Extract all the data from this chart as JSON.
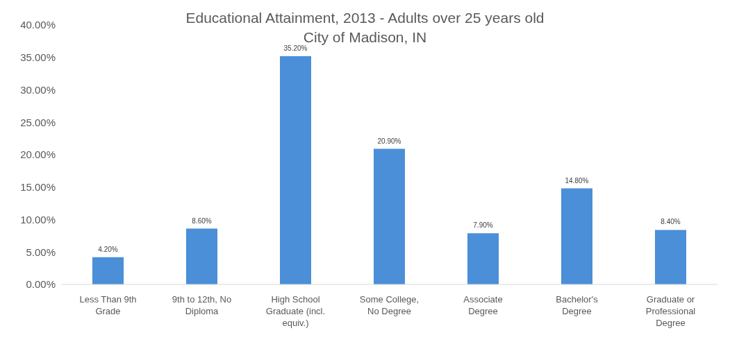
{
  "chart_data": {
    "type": "bar",
    "title": "Educational Attainment, 2013 - Adults over 25 years old",
    "subtitle": "City of Madison, IN",
    "categories": [
      "Less Than 9th Grade",
      "9th to 12th, No Diploma",
      "High School Graduate (incl. equiv.)",
      "Some College, No Degree",
      "Associate Degree",
      "Bachelor's Degree",
      "Graduate or Professional Degree"
    ],
    "values": [
      4.2,
      8.6,
      35.2,
      20.9,
      7.9,
      14.8,
      8.4
    ],
    "value_labels": [
      "4.20%",
      "8.60%",
      "35.20%",
      "20.90%",
      "7.90%",
      "14.80%",
      "8.40%"
    ],
    "color": "#4a8fd8",
    "ylim": [
      0,
      40
    ],
    "yticks": [
      {
        "value": 0,
        "label": "0.00%"
      },
      {
        "value": 5,
        "label": "5.00%"
      },
      {
        "value": 10,
        "label": "10.00%"
      },
      {
        "value": 15,
        "label": "15.00%"
      },
      {
        "value": 20,
        "label": "20.00%"
      },
      {
        "value": 25,
        "label": "25.00%"
      },
      {
        "value": 30,
        "label": "30.00%"
      },
      {
        "value": 35,
        "label": "35.00%"
      },
      {
        "value": 40,
        "label": "40.00%"
      }
    ],
    "grid": false,
    "legend": false
  }
}
